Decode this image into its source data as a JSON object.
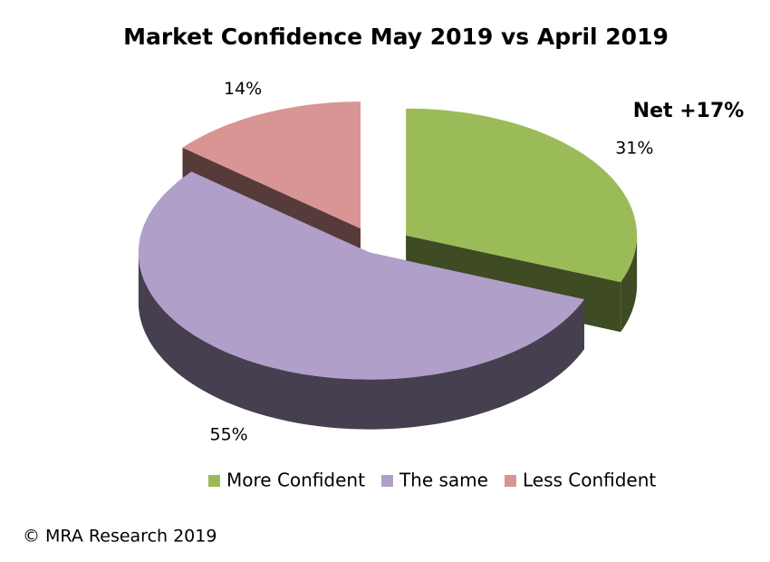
{
  "chart_data": {
    "type": "pie3d",
    "title": "Market Confidence May 2019 vs April 2019",
    "annotation": "Net +17%",
    "footer": "© MRA Research 2019",
    "series": [
      {
        "name": "More Confident",
        "color": "#9bbb59",
        "values": [
          31
        ],
        "value_labels": [
          "31%"
        ]
      },
      {
        "name": "The same",
        "color": "#b09fc9",
        "values": [
          55
        ],
        "value_labels": [
          "55%"
        ]
      },
      {
        "name": "Less Confident",
        "color": "#d99594",
        "values": [
          14
        ],
        "value_labels": [
          "14%"
        ]
      }
    ]
  }
}
